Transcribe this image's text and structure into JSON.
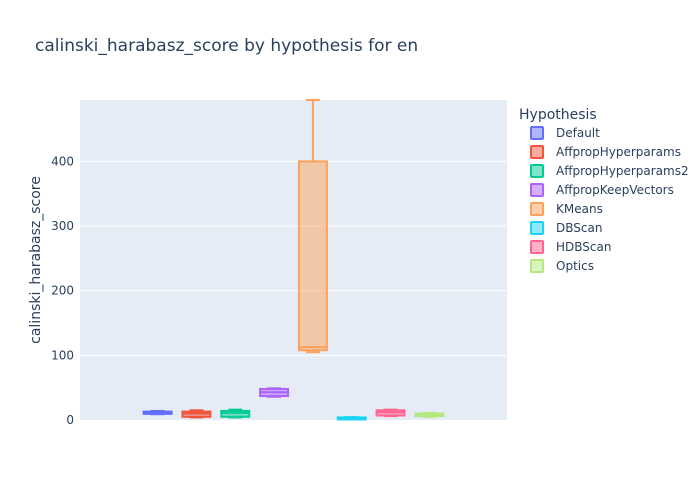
{
  "chart_data": {
    "type": "box",
    "title": "calinski_harabasz_score by hypothesis for en",
    "xlabel": "",
    "ylabel": "calinski_harabasz_score",
    "ylim": [
      0,
      495
    ],
    "yticks": [
      0,
      100,
      200,
      300,
      400
    ],
    "grid": true,
    "legend": {
      "title": "Hypothesis",
      "placement": "right"
    },
    "series": [
      {
        "name": "Default",
        "color": "#636efa",
        "min": 9,
        "q1": 9.5,
        "median": 11,
        "q3": 13,
        "max": 14
      },
      {
        "name": "AffpropHyperparams",
        "color": "#ef553b",
        "min": 4,
        "q1": 5,
        "median": 10,
        "q3": 13,
        "max": 15
      },
      {
        "name": "AffpropHyperparams2",
        "color": "#00cc96",
        "min": 4,
        "q1": 5,
        "median": 11,
        "q3": 14,
        "max": 16
      },
      {
        "name": "AffpropKeepVectors",
        "color": "#ab63fa",
        "min": 36,
        "q1": 37,
        "median": 43,
        "q3": 48,
        "max": 49
      },
      {
        "name": "KMeans",
        "color": "#ffa15a",
        "min": 105,
        "q1": 108,
        "median": 113,
        "q3": 400,
        "max": 495
      },
      {
        "name": "DBScan",
        "color": "#19d3f3",
        "min": 2,
        "q1": 2.5,
        "median": 3,
        "q3": 4,
        "max": 4.5
      },
      {
        "name": "HDBScan",
        "color": "#ff6692",
        "min": 6,
        "q1": 7,
        "median": 12,
        "q3": 15,
        "max": 16
      },
      {
        "name": "Optics",
        "color": "#b6e880",
        "min": 5,
        "q1": 6,
        "median": 8,
        "q3": 10,
        "max": 11
      }
    ]
  }
}
